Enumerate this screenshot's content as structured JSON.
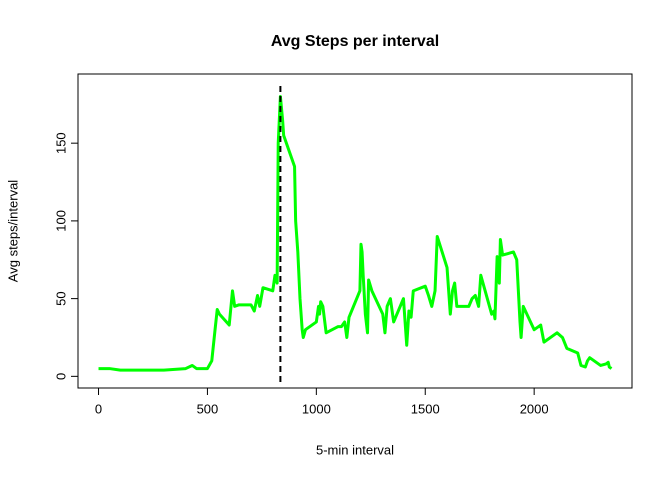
{
  "chart_data": {
    "type": "line",
    "title": "Avg Steps per interval",
    "xlabel": "5-min interval",
    "ylabel": "Avg steps/interval",
    "x": [
      0,
      50,
      100,
      200,
      300,
      400,
      430,
      450,
      500,
      520,
      535,
      545,
      555,
      600,
      615,
      625,
      645,
      700,
      715,
      730,
      740,
      755,
      800,
      810,
      820,
      825,
      835,
      845,
      850,
      900,
      905,
      915,
      925,
      935,
      940,
      950,
      1000,
      1010,
      1015,
      1020,
      1030,
      1045,
      1100,
      1115,
      1130,
      1140,
      1150,
      1200,
      1205,
      1210,
      1215,
      1225,
      1235,
      1240,
      1255,
      1305,
      1315,
      1325,
      1340,
      1355,
      1400,
      1415,
      1425,
      1435,
      1445,
      1500,
      1515,
      1530,
      1545,
      1555,
      1600,
      1615,
      1625,
      1635,
      1645,
      1700,
      1715,
      1730,
      1745,
      1755,
      1805,
      1815,
      1820,
      1830,
      1840,
      1845,
      1855,
      1905,
      1920,
      1935,
      1940,
      1950,
      2000,
      2030,
      2045,
      2105,
      2130,
      2150,
      2200,
      2215,
      2235,
      2245,
      2255,
      2305,
      2330,
      2340,
      2345,
      2355
    ],
    "series": [
      {
        "name": "Avg steps",
        "color": "#00ff00",
        "values": [
          5,
          5,
          4,
          4,
          4,
          5,
          7,
          5,
          5,
          10,
          30,
          43,
          40,
          33,
          55,
          45,
          46,
          46,
          42,
          52,
          45,
          57,
          55,
          65,
          60,
          150,
          180,
          165,
          155,
          135,
          100,
          80,
          50,
          30,
          25,
          30,
          35,
          45,
          40,
          48,
          45,
          28,
          32,
          32,
          35,
          25,
          38,
          55,
          85,
          80,
          65,
          40,
          28,
          62,
          55,
          40,
          28,
          45,
          50,
          35,
          50,
          20,
          42,
          38,
          55,
          58,
          52,
          45,
          55,
          90,
          70,
          40,
          55,
          60,
          45,
          45,
          50,
          52,
          45,
          65,
          40,
          42,
          37,
          77,
          60,
          88,
          78,
          80,
          75,
          35,
          25,
          45,
          30,
          33,
          22,
          28,
          25,
          18,
          15,
          7,
          6,
          10,
          12,
          7,
          8,
          9,
          6,
          5
        ]
      }
    ],
    "vline": 835,
    "vline_color": "#000000",
    "xlim": [
      -94.2,
      2449.2
    ],
    "ylim": [
      -7.5,
      194.5
    ],
    "xticks": [
      0,
      500,
      1000,
      1500,
      2000
    ],
    "yticks": [
      0,
      50,
      100,
      150
    ]
  }
}
